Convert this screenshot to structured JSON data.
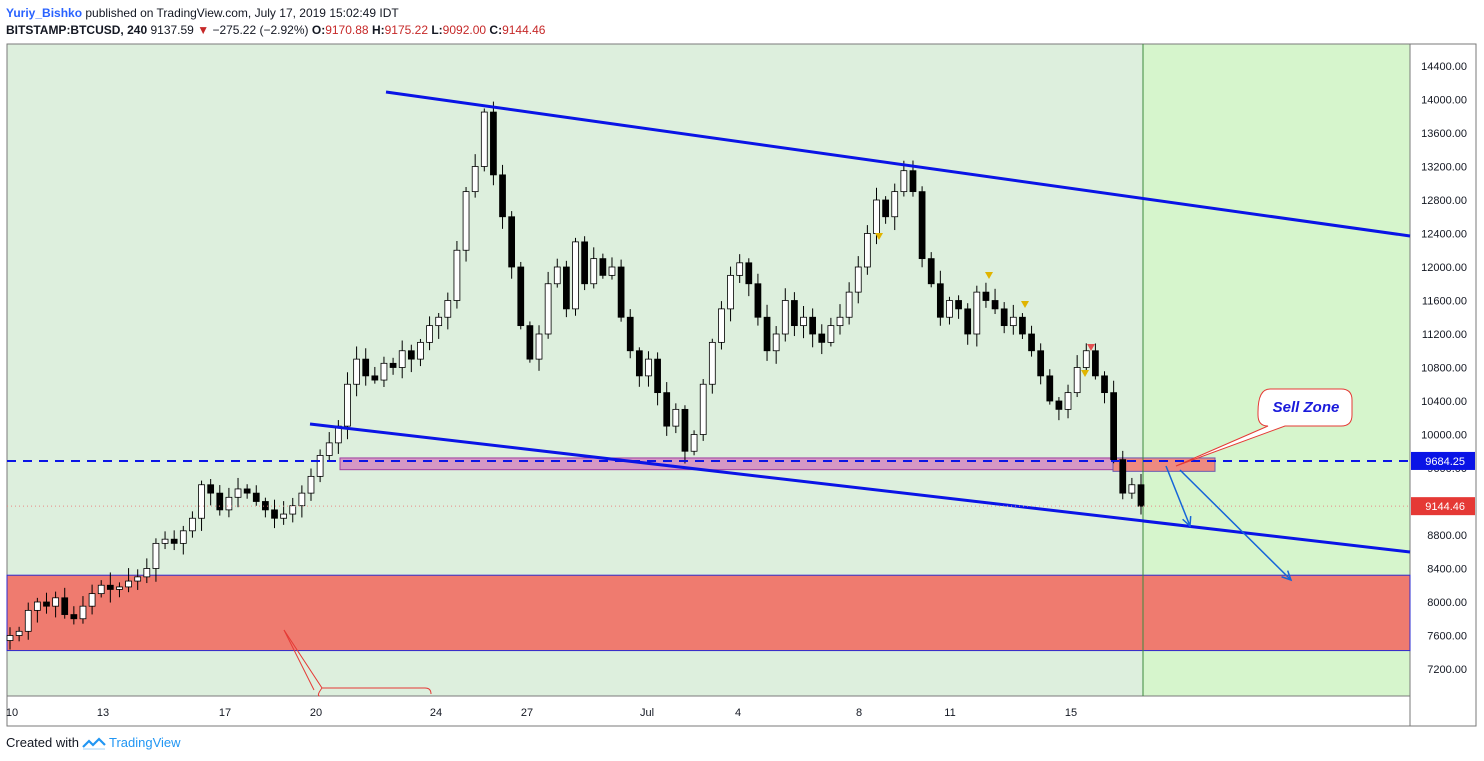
{
  "header": {
    "author": "Yuriy_Bishko",
    "published": "published on TradingView.com, July 17, 2019 15:02:49 IDT"
  },
  "ohlc": {
    "symbol": "BITSTAMP:BTCUSD, 240",
    "last": "9137.59",
    "arrow": "▼",
    "change": "−275.22 (−2.92%)",
    "o_label": "O:",
    "o": "9170.88",
    "h_label": "H:",
    "h": "9175.22",
    "l_label": "L:",
    "l": "9092.00",
    "c_label": "C:",
    "c": "9144.46"
  },
  "footer": {
    "created_with": "Created with",
    "brand": "TradingView"
  },
  "colors": {
    "background": "#ddefdd",
    "forecast_background": "#d6f5cc",
    "channel": "#0a14e6",
    "demand_zone": "#ef7b6f",
    "sell_zone": "#ee8a80",
    "candle_up": "#ffffff",
    "candle_down": "#000000",
    "annotation": "#e53935"
  },
  "chart_data": {
    "type": "candlestick",
    "symbol": "BITSTAMP:BTCUSD",
    "interval": "240",
    "ylim": [
      6900,
      14700
    ],
    "y_ticks": [
      7200,
      7600,
      8000,
      8400,
      8800,
      9200,
      9600,
      10000,
      10400,
      10800,
      11200,
      11600,
      12000,
      12400,
      12800,
      13200,
      13600,
      14000,
      14400
    ],
    "y_tick_labels": [
      "7200.00",
      "7600.00",
      "8000.00",
      "8400.00",
      "8800.00",
      "9200.00",
      "9600.00",
      "10000.00",
      "10400.00",
      "10800.00",
      "11200.00",
      "11600.00",
      "12000.00",
      "12400.00",
      "12800.00",
      "13200.00",
      "13600.00",
      "14000.00",
      "14400.00"
    ],
    "x_tick_labels": [
      "10",
      "13",
      "17",
      "20",
      "24",
      "27",
      "Jul",
      "4",
      "8",
      "11",
      "15"
    ],
    "price_lines": [
      {
        "label": "9684.25",
        "value": 9684.25,
        "style": "dashed",
        "color": "#0a14e6"
      },
      {
        "label": "9144.46",
        "value": 9144.46,
        "style": "dotted",
        "color": "#e53935"
      }
    ],
    "annotations": {
      "sell_zone_label": "Sell Zone"
    },
    "zones": {
      "demand_zone": [
        7420,
        8320
      ],
      "sell_zone": [
        9580,
        9720
      ]
    },
    "channel": {
      "upper": [
        [
          "Jun 22",
          14100
        ],
        [
          "Jul 22",
          12380
        ]
      ],
      "lower": [
        [
          "Jun 20",
          10120
        ],
        [
          "Jul 22",
          8590
        ]
      ]
    },
    "close_path": [
      7600,
      7650,
      7900,
      8000,
      7950,
      8050,
      7850,
      7800,
      7950,
      8100,
      8200,
      8150,
      8180,
      8250,
      8300,
      8400,
      8700,
      8750,
      8700,
      8850,
      9000,
      9400,
      9300,
      9100,
      9250,
      9350,
      9300,
      9200,
      9100,
      9000,
      9050,
      9150,
      9300,
      9500,
      9750,
      9900,
      10100,
      10600,
      10900,
      10700,
      10650,
      10850,
      10800,
      11000,
      10900,
      11100,
      11300,
      11400,
      11600,
      12200,
      12900,
      13200,
      13850,
      13100,
      12600,
      12000,
      11300,
      10900,
      11200,
      11800,
      12000,
      11500,
      12300,
      11800,
      12100,
      11900,
      12000,
      11400,
      11000,
      10700,
      10900,
      10500,
      10100,
      10300,
      9800,
      10000,
      10600,
      11100,
      11500,
      11900,
      12050,
      11800,
      11400,
      11000,
      11200,
      11600,
      11300,
      11400,
      11200,
      11100,
      11300,
      11400,
      11700,
      12000,
      12400,
      12800,
      12600,
      12900,
      13150,
      12900,
      12100,
      11800,
      11400,
      11600,
      11500,
      11200,
      11700,
      11600,
      11500,
      11300,
      11400,
      11200,
      11000,
      10700,
      10400,
      10300,
      10500,
      10800,
      11000,
      10700,
      10500,
      9700,
      9300,
      9400,
      9144
    ]
  }
}
